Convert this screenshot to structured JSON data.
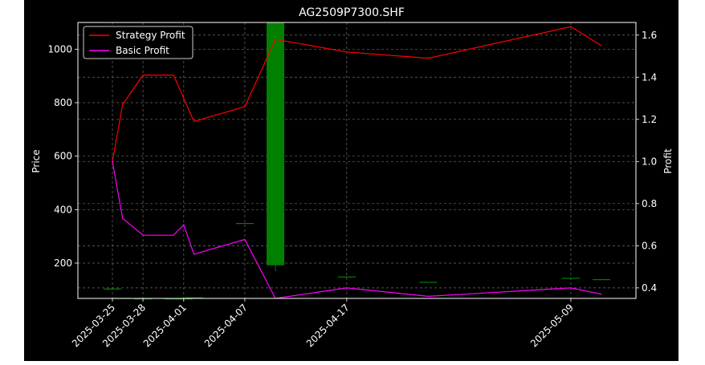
{
  "chart_data": {
    "type": "line",
    "title": "AG2509P7300.SHF",
    "ylabel_left": "Price",
    "ylabel_right": "Profit",
    "x_ticks": [
      "2025-03-25",
      "2025-03-28",
      "2025-04-01",
      "2025-04-07",
      "2025-04-17",
      "2025-05-09"
    ],
    "ylim_left": [
      68,
      1100
    ],
    "y_ticks_left": [
      200,
      400,
      600,
      800,
      1000
    ],
    "ylim_right": [
      0.35,
      1.66
    ],
    "y_ticks_right": [
      0.4,
      0.6,
      0.8,
      1.0,
      1.2,
      1.4,
      1.6
    ],
    "grid": true,
    "legend_position": "top-left",
    "x": [
      "2025-03-25",
      "2025-03-26",
      "2025-03-28",
      "2025-03-31",
      "2025-04-01",
      "2025-04-02",
      "2025-04-07",
      "2025-04-10",
      "2025-04-17",
      "2025-04-25",
      "2025-05-09",
      "2025-05-12"
    ],
    "series": [
      {
        "name": "Strategy Profit",
        "color": "#ff0000",
        "axis": "right",
        "values": [
          1.0,
          1.27,
          1.41,
          1.41,
          1.3,
          1.19,
          1.26,
          1.58,
          1.52,
          1.49,
          1.64,
          1.55
        ]
      },
      {
        "name": "Basic Profit",
        "color": "#ff00ff",
        "axis": "right",
        "values": [
          1.0,
          0.73,
          0.65,
          0.65,
          0.7,
          0.56,
          0.63,
          0.35,
          0.4,
          0.36,
          0.4,
          0.37
        ]
      }
    ],
    "candles": [
      {
        "x": "2025-03-25",
        "open": 105,
        "high": 105,
        "low": 105,
        "close": 105
      },
      {
        "x": "2025-03-26",
        "open": 70,
        "high": 70,
        "low": 70,
        "close": 70
      },
      {
        "x": "2025-03-28",
        "open": 68,
        "high": 68,
        "low": 68,
        "close": 68
      },
      {
        "x": "2025-03-31",
        "open": 68,
        "high": 68,
        "low": 68,
        "close": 68
      },
      {
        "x": "2025-04-01",
        "open": 68,
        "high": 68,
        "low": 68,
        "close": 68
      },
      {
        "x": "2025-04-02",
        "open": 72,
        "high": 72,
        "low": 72,
        "close": 72
      },
      {
        "x": "2025-04-07",
        "open": 350,
        "high": 350,
        "low": 350,
        "close": 350
      },
      {
        "x": "2025-04-10",
        "open": 192,
        "high": 1100,
        "low": 170,
        "close": 1100
      },
      {
        "x": "2025-04-17",
        "open": 150,
        "high": 150,
        "low": 150,
        "close": 150
      },
      {
        "x": "2025-04-25",
        "open": 130,
        "high": 130,
        "low": 130,
        "close": 130
      },
      {
        "x": "2025-05-09",
        "open": 145,
        "high": 145,
        "low": 145,
        "close": 145
      },
      {
        "x": "2025-05-12",
        "open": 140,
        "high": 140,
        "low": 140,
        "close": 140
      }
    ],
    "colors": {
      "background": "#000000",
      "outer_background": "#ffffff",
      "axes": "#ffffff",
      "text": "#ffffff",
      "grid": "#6e6e6e",
      "candle_up": "#008000",
      "candle_down": "#ff0000"
    }
  }
}
